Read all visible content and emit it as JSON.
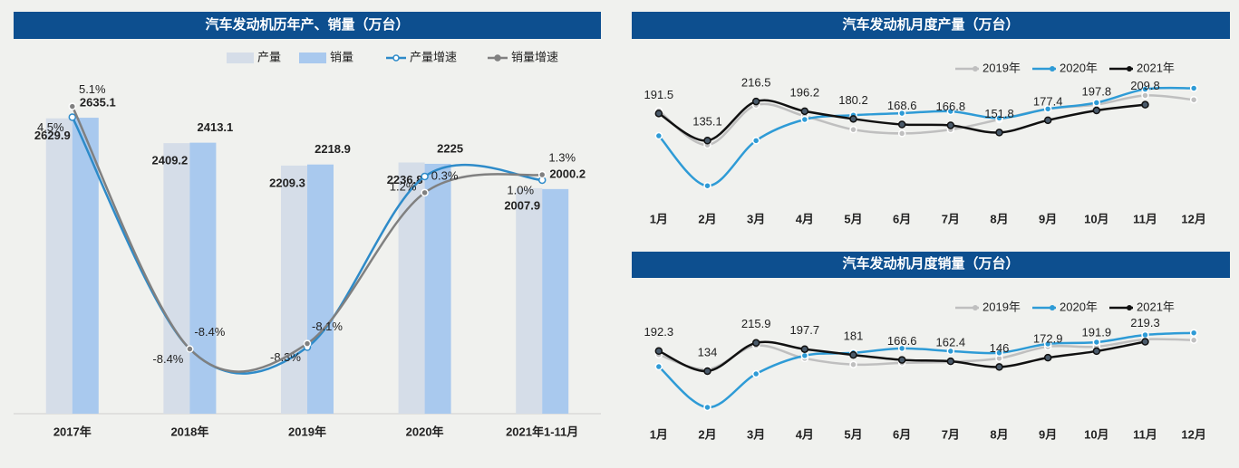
{
  "chart_data": [
    {
      "type": "bar",
      "title": "汽车发动机历年产、销量（万台）",
      "categories": [
        "2017年",
        "2018年",
        "2019年",
        "2020年",
        "2021年1-11月"
      ],
      "ylim": [
        0,
        3200
      ],
      "y2lim": [
        -12,
        8
      ],
      "series": [
        {
          "name": "产量",
          "color": "#d5dde8",
          "values": [
            2629.9,
            2409.2,
            2209.3,
            2236.8,
            2007.9
          ]
        },
        {
          "name": "销量",
          "color": "#a9c9ee",
          "values": [
            2635.1,
            2413.1,
            2218.9,
            2225.0,
            2000.2
          ]
        },
        {
          "name": "产量增速",
          "type": "line",
          "axis": "y2",
          "color": "#2e8bc9",
          "values": [
            4.5,
            -8.4,
            -8.3,
            1.2,
            1.0
          ],
          "value_labels": [
            "4.5%",
            "-8.4%",
            "-8.3%",
            "1.2%",
            "1.0%"
          ]
        },
        {
          "name": "销量增速",
          "type": "line",
          "axis": "y2",
          "color": "#808080",
          "values": [
            5.1,
            -8.4,
            -8.1,
            0.3,
            1.3
          ],
          "value_labels": [
            "5.1%",
            "-8.4%",
            "-8.1%",
            "0.3%",
            "1.3%"
          ]
        }
      ]
    },
    {
      "type": "line",
      "title": "汽车发动机月度产量（万台）",
      "categories": [
        "1月",
        "2月",
        "3月",
        "4月",
        "5月",
        "6月",
        "7月",
        "8月",
        "9月",
        "10月",
        "11月",
        "12月"
      ],
      "ylim": [
        0,
        260
      ],
      "series": [
        {
          "name": "2019年",
          "color": "#bfbfbf",
          "values": [
            197,
            126,
            209,
            186,
            158,
            150,
            158,
            179,
            201,
            210,
            229,
            220
          ]
        },
        {
          "name": "2020年",
          "color": "#2e9bd6",
          "values": [
            145,
            41,
            135,
            179,
            188,
            192,
            196,
            182,
            201,
            214,
            242,
            244
          ]
        },
        {
          "name": "2021年",
          "color": "#111111",
          "labeled": true,
          "values": [
            191.5,
            135.1,
            216.5,
            196.2,
            180.2,
            168.6,
            166.8,
            151.8,
            177.4,
            197.8,
            209.8,
            null
          ]
        }
      ]
    },
    {
      "type": "line",
      "title": "汽车发动机月度销量（万台）",
      "categories": [
        "1月",
        "2月",
        "3月",
        "4月",
        "5月",
        "6月",
        "7月",
        "8月",
        "9月",
        "10月",
        "11月",
        "12月"
      ],
      "ylim": [
        0,
        260
      ],
      "series": [
        {
          "name": "2019年",
          "color": "#bfbfbf",
          "values": [
            182,
            139,
            208,
            171,
            153,
            158,
            161,
            171,
            205,
            205,
            226,
            224
          ]
        },
        {
          "name": "2020年",
          "color": "#2e9bd6",
          "values": [
            147,
            29,
            126,
            179,
            187,
            200,
            192,
            187,
            213,
            218,
            239,
            245
          ]
        },
        {
          "name": "2021年",
          "color": "#111111",
          "labeled": true,
          "values": [
            192.3,
            134.0,
            215.9,
            197.7,
            181.0,
            166.6,
            162.4,
            146.0,
            172.9,
            191.9,
            219.3,
            null
          ]
        }
      ]
    }
  ]
}
